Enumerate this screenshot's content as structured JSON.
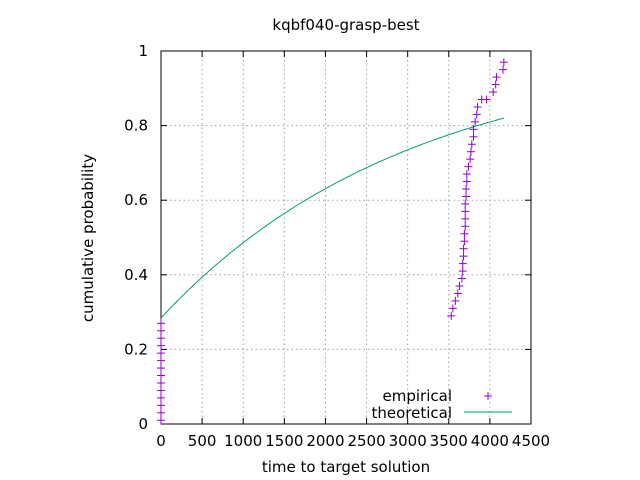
{
  "chart_data": {
    "type": "scatter",
    "title": "kqbf040-grasp-best",
    "xlabel": "time to target solution",
    "ylabel": "cumulative probability",
    "xlim": [
      0,
      4500
    ],
    "ylim": [
      0,
      1
    ],
    "xticks": [
      0,
      500,
      1000,
      1500,
      2000,
      2500,
      3000,
      3500,
      4000,
      4500
    ],
    "yticks": [
      0,
      0.2,
      0.4,
      0.6,
      0.8,
      1
    ],
    "xtick_labels": [
      "0",
      "500",
      "1000",
      "1500",
      "2000",
      "2500",
      "3000",
      "3500",
      "4000",
      "4500"
    ],
    "ytick_labels": [
      "0",
      "0.2",
      "0.4",
      "0.6",
      "0.8",
      "1"
    ],
    "grid": true,
    "legend_position": "bottom-right",
    "series": [
      {
        "name": "empirical",
        "style": "points",
        "marker": "plus",
        "color": "#9400d3",
        "points": [
          [
            0,
            0.01
          ],
          [
            0,
            0.03
          ],
          [
            0,
            0.05
          ],
          [
            0,
            0.07
          ],
          [
            0,
            0.09
          ],
          [
            0,
            0.11
          ],
          [
            0,
            0.13
          ],
          [
            0,
            0.15
          ],
          [
            0,
            0.17
          ],
          [
            0,
            0.19
          ],
          [
            0,
            0.21
          ],
          [
            0,
            0.23
          ],
          [
            0,
            0.25
          ],
          [
            0,
            0.27
          ],
          [
            3530,
            0.29
          ],
          [
            3550,
            0.31
          ],
          [
            3580,
            0.33
          ],
          [
            3610,
            0.35
          ],
          [
            3630,
            0.37
          ],
          [
            3660,
            0.39
          ],
          [
            3670,
            0.41
          ],
          [
            3670,
            0.43
          ],
          [
            3680,
            0.45
          ],
          [
            3680,
            0.47
          ],
          [
            3690,
            0.49
          ],
          [
            3690,
            0.51
          ],
          [
            3700,
            0.53
          ],
          [
            3700,
            0.55
          ],
          [
            3700,
            0.57
          ],
          [
            3700,
            0.59
          ],
          [
            3710,
            0.61
          ],
          [
            3710,
            0.63
          ],
          [
            3720,
            0.65
          ],
          [
            3720,
            0.67
          ],
          [
            3740,
            0.69
          ],
          [
            3760,
            0.71
          ],
          [
            3770,
            0.73
          ],
          [
            3780,
            0.75
          ],
          [
            3800,
            0.77
          ],
          [
            3800,
            0.79
          ],
          [
            3820,
            0.81
          ],
          [
            3840,
            0.83
          ],
          [
            3850,
            0.85
          ],
          [
            3900,
            0.87
          ],
          [
            3960,
            0.87
          ],
          [
            4040,
            0.89
          ],
          [
            4070,
            0.91
          ],
          [
            4080,
            0.93
          ],
          [
            4160,
            0.95
          ],
          [
            4170,
            0.97
          ]
        ]
      },
      {
        "name": "theoretical",
        "style": "line",
        "color": "#009e73",
        "function": "exponential_cdf",
        "shift": -1010,
        "mean": 3020,
        "x_range": [
          0,
          4170
        ]
      }
    ]
  }
}
